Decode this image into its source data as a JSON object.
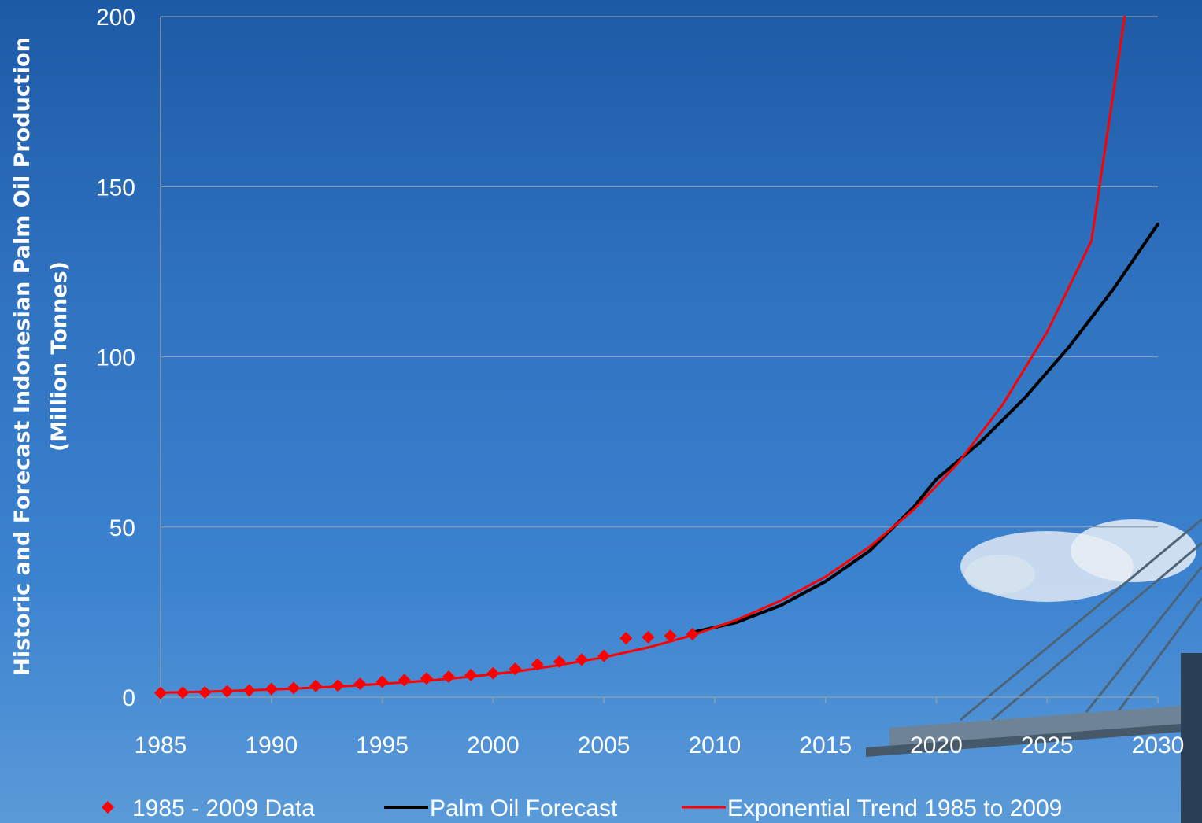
{
  "chart_data": {
    "type": "line",
    "ylabel_line1": "Historic and Forecast Indonesian Palm Oil Production",
    "ylabel_line2": "(Million Tonnes)",
    "xlim": [
      1985,
      2030
    ],
    "ylim": [
      0,
      200
    ],
    "x_ticks": [
      "1985",
      "1990",
      "1995",
      "2000",
      "2005",
      "2010",
      "2015",
      "2020",
      "2025",
      "2030"
    ],
    "y_ticks": [
      "0",
      "50",
      "100",
      "150",
      "200"
    ],
    "grid": "horizontal",
    "legend_position": "bottom",
    "series": [
      {
        "name": "1985 - 2009 Data",
        "kind": "scatter",
        "color": "#ff0000",
        "x": [
          1985,
          1986,
          1987,
          1988,
          1989,
          1990,
          1991,
          1992,
          1993,
          1994,
          1995,
          1996,
          1997,
          1998,
          1999,
          2000,
          2001,
          2002,
          2003,
          2004,
          2005,
          2006,
          2007,
          2008,
          2009
        ],
        "y": [
          1.2,
          1.3,
          1.4,
          1.7,
          2.0,
          2.4,
          2.7,
          3.3,
          3.4,
          3.9,
          4.5,
          5.0,
          5.5,
          6.0,
          6.5,
          7.0,
          8.3,
          9.6,
          10.4,
          11.0,
          12.1,
          17.3,
          17.6,
          18.0,
          18.5
        ]
      },
      {
        "name": "Palm Oil Forecast",
        "kind": "line",
        "color": "#000000",
        "x": [
          2009,
          2011,
          2013,
          2015,
          2017,
          2019,
          2020,
          2022,
          2024,
          2026,
          2028,
          2030
        ],
        "y": [
          19,
          22,
          27,
          34,
          43,
          56,
          64,
          75,
          88,
          103,
          120,
          139
        ]
      },
      {
        "name": "Exponential Trend 1985 to 2009",
        "kind": "line",
        "color": "#ff0000",
        "x": [
          1985,
          1987,
          1989,
          1991,
          1993,
          1995,
          1997,
          1999,
          2001,
          2003,
          2005,
          2007,
          2009,
          2011,
          2013,
          2015,
          2017,
          2019,
          2021,
          2023,
          2025,
          2027,
          2028.5
        ],
        "y": [
          1.3,
          1.6,
          2.0,
          2.5,
          3.1,
          3.9,
          4.8,
          6.0,
          7.5,
          9.4,
          11.7,
          14.6,
          18.2,
          22.7,
          28.4,
          35.4,
          44.2,
          55.2,
          68.9,
          86.0,
          107.3,
          134.0,
          200
        ]
      }
    ]
  }
}
